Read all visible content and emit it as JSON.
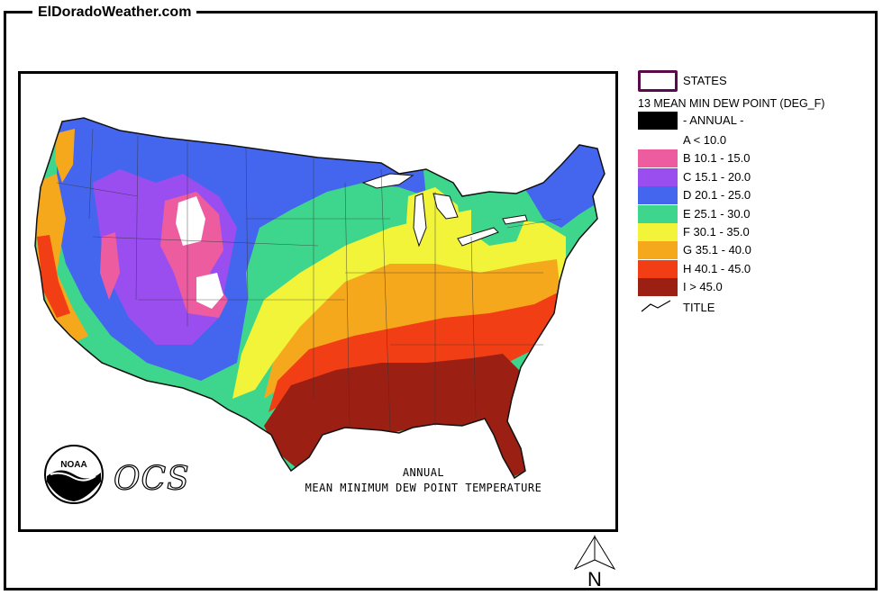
{
  "site": {
    "title": "ElDoradoWeather.com"
  },
  "map": {
    "caption_line1": "ANNUAL",
    "caption_line2": "MEAN MINIMUM DEW POINT TEMPERATURE",
    "logo_text": "OCS",
    "noaa_text": "NOAA"
  },
  "legend": {
    "states_label": "STATES",
    "variable_label": "13 MEAN MIN DEW POINT (DEG_F)",
    "annual_label": "- ANNUAL -",
    "classes": [
      {
        "label": "A < 10.0",
        "color": "#ffffff"
      },
      {
        "label": "B 10.1 - 15.0",
        "color": "#ee5ca0"
      },
      {
        "label": "C 15.1 - 20.0",
        "color": "#9a4ef0"
      },
      {
        "label": "D 20.1 - 25.0",
        "color": "#4466ee"
      },
      {
        "label": "E 25.1 - 30.0",
        "color": "#3ed68c"
      },
      {
        "label": "F 30.1 - 35.0",
        "color": "#f2f43a"
      },
      {
        "label": "G 35.1 - 40.0",
        "color": "#f5a81c"
      },
      {
        "label": "H 40.1 - 45.0",
        "color": "#f23e14"
      },
      {
        "label": "I > 45.0",
        "color": "#9c1f14"
      }
    ],
    "title_label": "TITLE"
  },
  "north_arrow": {
    "label": "N"
  }
}
